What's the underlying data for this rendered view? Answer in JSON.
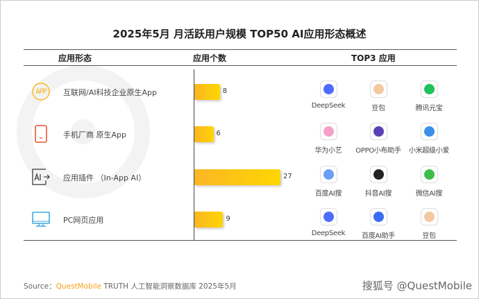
{
  "chart_data": {
    "type": "bar",
    "title": "2025年5月 月活跃用户规模 TOP50 AI应用形态概述",
    "columns": [
      "应用形态",
      "应用个数",
      "TOP3 应用"
    ],
    "categories": [
      "互联网/AI科技企业原生App",
      "手机厂商 原生App",
      "应用插件 （In-App AI）",
      "PC网页应用"
    ],
    "values": [
      8,
      6,
      27,
      9
    ],
    "top3": [
      [
        "DeepSeek",
        "豆包",
        "腾讯元宝"
      ],
      [
        "华为小艺",
        "OPPO小布助手",
        "小米超级小爱"
      ],
      [
        "百度AI搜",
        "抖音AI搜",
        "微信AI搜"
      ],
      [
        "DeepSeek",
        "百度AI助手",
        "豆包"
      ]
    ],
    "row_icons": [
      "app-icon",
      "phone-icon",
      "ai-plugin-icon",
      "monitor-icon"
    ],
    "colors": {
      "bar_start": "#fbb625",
      "bar_end": "#ffd600",
      "brand": "#f7a21b"
    }
  },
  "footer": {
    "source_prefix": "Source：",
    "source_brand": "QuestMobile",
    "source_rest": " TRUTH 人工智能洞察数据库 2025年5月",
    "handle": "搜狐号 @QuestMobile"
  },
  "watermark": "QUEST MOBILE"
}
